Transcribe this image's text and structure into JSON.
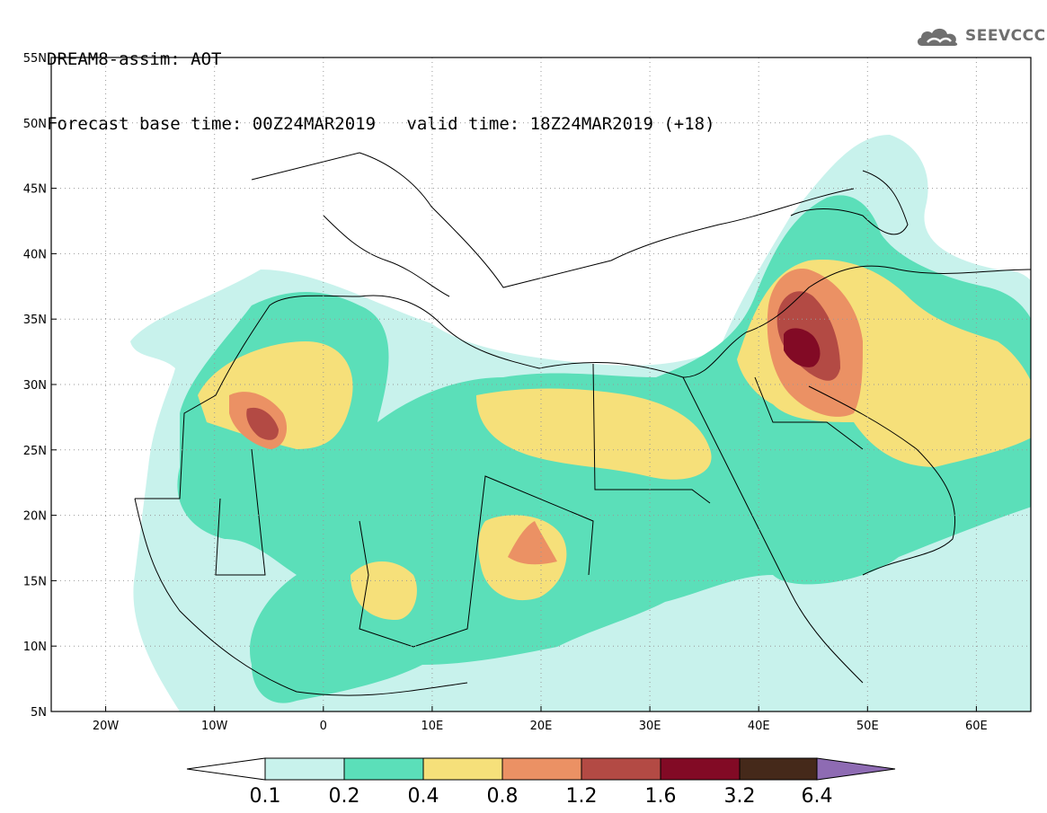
{
  "header": {
    "line1": "DREAM8-assim: AOT",
    "line2_left": "Forecast base time: 00Z24MAR2019",
    "line2_right": "valid time: 18Z24MAR2019 (+18)"
  },
  "logo": {
    "text": "SEEVCCC",
    "icon": "cloud-icon"
  },
  "map": {
    "lat_ticks": [
      "55N",
      "50N",
      "45N",
      "40N",
      "35N",
      "30N",
      "25N",
      "20N",
      "15N",
      "10N",
      "5N"
    ],
    "lon_ticks": [
      "20W",
      "10W",
      "0",
      "10E",
      "20E",
      "30E",
      "40E",
      "50E",
      "60E"
    ],
    "lat_range": [
      5,
      55
    ],
    "lon_range": [
      -25,
      65
    ],
    "grid": "dotted"
  },
  "colorbar": {
    "labels": [
      "0.1",
      "0.2",
      "0.4",
      "0.8",
      "1.2",
      "1.6",
      "3.2",
      "6.4"
    ],
    "colors": [
      "#ffffff",
      "#c8f2ec",
      "#5bdfb9",
      "#f6e07a",
      "#eb9164",
      "#b34a44",
      "#820a25",
      "#45291a",
      "#8e6bb3"
    ]
  }
}
